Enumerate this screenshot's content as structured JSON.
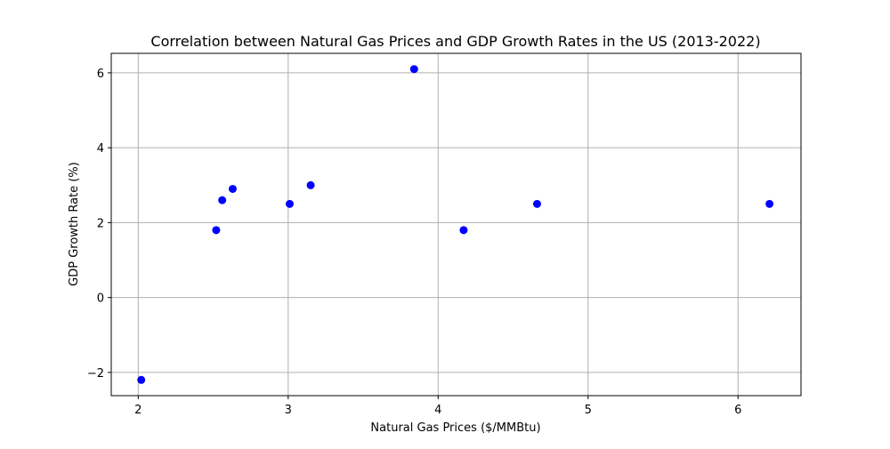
{
  "chart_data": {
    "type": "scatter",
    "title": "Correlation between Natural Gas Prices and GDP Growth Rates in the US (2013-2022)",
    "xlabel": "Natural Gas Prices ($/MMBtu)",
    "ylabel": "GDP Growth Rate (%)",
    "xlim": [
      1.82,
      6.42
    ],
    "ylim": [
      -2.62,
      6.52
    ],
    "xticks": [
      2,
      3,
      4,
      5,
      6
    ],
    "yticks": [
      -2,
      0,
      2,
      4,
      6
    ],
    "xtick_labels": [
      "2",
      "3",
      "4",
      "5",
      "6"
    ],
    "ytick_labels": [
      "−2",
      "0",
      "2",
      "4",
      "6"
    ],
    "grid": true,
    "marker_color": "#0000ff",
    "points": [
      {
        "x": 3.15,
        "y": 3.0
      },
      {
        "x": 2.63,
        "y": 2.9
      },
      {
        "x": 2.56,
        "y": 2.6
      },
      {
        "x": 3.01,
        "y": 2.5
      },
      {
        "x": 2.52,
        "y": 1.8
      },
      {
        "x": 2.02,
        "y": -2.2
      },
      {
        "x": 3.84,
        "y": 6.1
      },
      {
        "x": 6.21,
        "y": 2.5
      },
      {
        "x": 4.66,
        "y": 2.5
      },
      {
        "x": 4.17,
        "y": 1.8
      }
    ]
  }
}
